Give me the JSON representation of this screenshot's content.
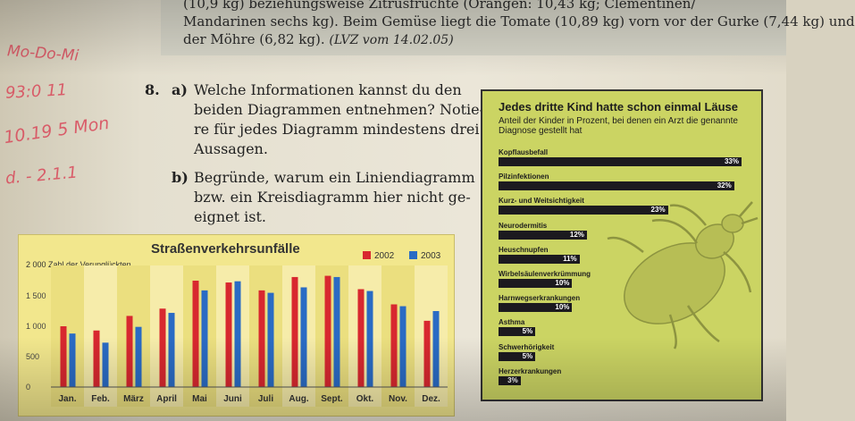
{
  "top_text": {
    "line1": "(10,9 kg) beziehungsweise Zitrusfrüchte (Orangen: 10,43 kg; Clementinen/",
    "line2": "Mandarinen sechs kg). Beim Gemüse liegt die Tomate (10,89 kg) vorn vor der Gurke (7,44 kg) und",
    "line3_main": "der Möhre (6,82 kg).",
    "line3_source": "(LVZ vom 14.02.05)"
  },
  "handwriting": [
    "Mo-Do-Mi",
    "93:0 11",
    "10.19 5 Mon",
    "d. - 2.1.1"
  ],
  "task": {
    "number": "8.",
    "a_label": "a)",
    "a_lines": [
      "Welche Informationen kannst du den",
      "beiden Diagrammen entnehmen? Notie-",
      "re für jedes Diagramm mindestens drei",
      "Aussagen."
    ],
    "b_label": "b)",
    "b_lines": [
      "Begründe, warum ein Liniendiagramm",
      "bzw. ein Kreisdiagramm hier nicht ge-",
      "eignet ist."
    ]
  },
  "chart_data": [
    {
      "type": "bar",
      "title": "Straßenverkehrsunfälle",
      "ylabel": "Zahl der Verunglückten",
      "ylim": [
        0,
        2000
      ],
      "yticks": [
        "0",
        "500",
        "1 000",
        "1 500",
        "2 000"
      ],
      "ytick_values": [
        0,
        500,
        1000,
        1500,
        2000
      ],
      "categories": [
        "Jan.",
        "Feb.",
        "März",
        "April",
        "Mai",
        "Juni",
        "Juli",
        "Aug.",
        "Sept.",
        "Okt.",
        "Nov.",
        "Dez."
      ],
      "series": [
        {
          "name": "2002",
          "color": "#d8282f",
          "values": [
            1000,
            930,
            1170,
            1290,
            1750,
            1720,
            1590,
            1810,
            1830,
            1610,
            1360,
            1090
          ]
        },
        {
          "name": "2003",
          "color": "#2a6bc4",
          "values": [
            880,
            730,
            990,
            1220,
            1590,
            1740,
            1550,
            1640,
            1810,
            1580,
            1330,
            1250
          ]
        }
      ],
      "legend": "top-right",
      "grid": false
    },
    {
      "type": "bar",
      "orientation": "horizontal",
      "title": "Jedes dritte Kind hatte schon einmal Läuse",
      "subtitle": "Anteil der Kinder in Prozent, bei denen ein Arzt die genannte Diagnose gestellt hat",
      "categories": [
        "Kopflausbefall",
        "Pilzinfektionen",
        "Kurz- und Weitsichtigkeit",
        "Neurodermitis",
        "Heuschnupfen",
        "Wirbelsäulenverkrümmung",
        "Harnwegserkrankungen",
        "Asthma",
        "Schwerhörigkeit",
        "Herzerkrankungen"
      ],
      "values": [
        33,
        32,
        23,
        12,
        11,
        10,
        10,
        5,
        5,
        3
      ],
      "labels": [
        "33%",
        "32%",
        "23%",
        "12%",
        "11%",
        "10%",
        "10%",
        "5%",
        "5%",
        "3%"
      ],
      "xlim": [
        0,
        33
      ]
    }
  ],
  "colors": {
    "left_chart_bg": "#f2e78d",
    "right_chart_bg": "#cbd463",
    "bar_dark": "#1c1a1f"
  }
}
